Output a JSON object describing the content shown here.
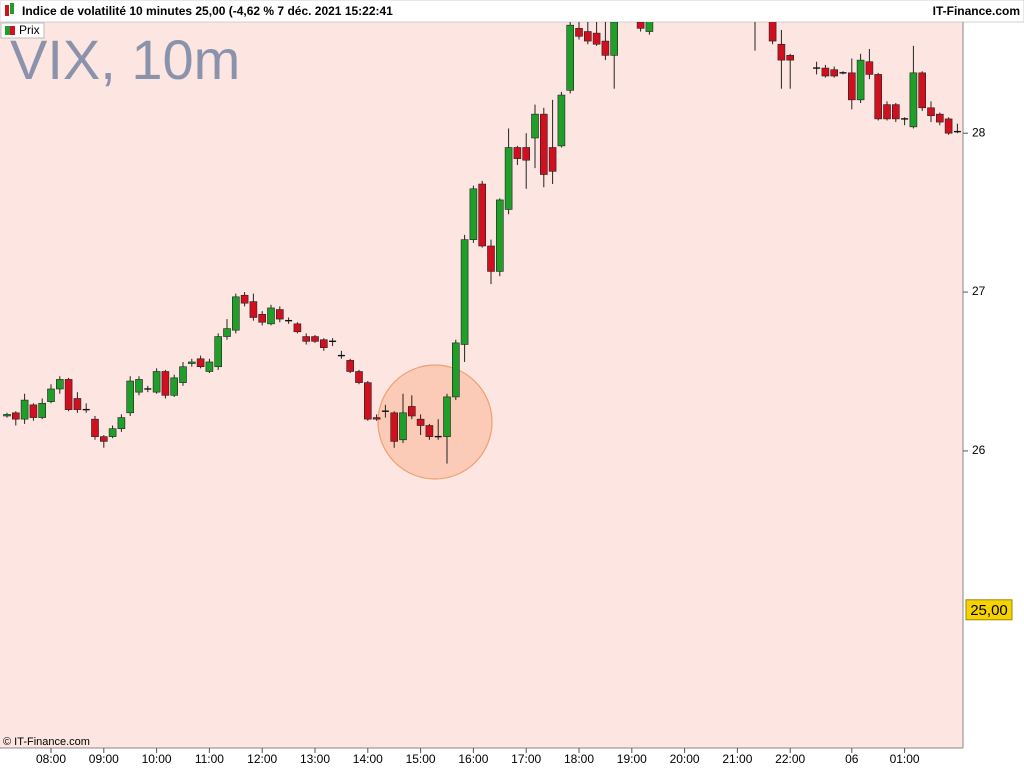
{
  "header": {
    "title": "Indice de volatilité 10 minutes 25,00 (-4,62 % 7 déc. 2021 15:22:41",
    "brand": "IT-Finance.com"
  },
  "footer": "© IT-Finance.com",
  "chart_data": {
    "type": "candlestick",
    "title": "VIX, 10m",
    "legend": "Prix",
    "up_color": "#1f9e2a",
    "down_color": "#d0101e",
    "categories": [
      null,
      null,
      null,
      null,
      null,
      "08:00",
      null,
      null,
      null,
      null,
      null,
      "09:00",
      null,
      null,
      null,
      null,
      null,
      "10:00",
      null,
      null,
      null,
      null,
      null,
      "11:00",
      null,
      null,
      null,
      null,
      null,
      "12:00",
      null,
      null,
      null,
      null,
      null,
      "13:00",
      null,
      null,
      null,
      null,
      null,
      "14:00",
      null,
      null,
      null,
      null,
      null,
      "15:00",
      null,
      null,
      null,
      null,
      null,
      "16:00",
      null,
      null,
      null,
      null,
      null,
      "17:00",
      null,
      null,
      null,
      null,
      null,
      "18:00",
      null,
      null,
      null,
      null,
      null,
      "19:00",
      null,
      null,
      null,
      null,
      null,
      "20:00",
      null,
      null,
      null,
      null,
      null,
      "21:00",
      null,
      null,
      null,
      null,
      null,
      "22:00",
      null,
      null,
      null,
      null,
      null,
      null,
      "06",
      null,
      null,
      null,
      null,
      null,
      "01:00",
      null,
      null,
      null,
      null,
      null,
      null
    ],
    "open": [
      26.22,
      26.24,
      26.2,
      26.29,
      26.21,
      26.31,
      26.39,
      26.45,
      26.33,
      26.26,
      26.2,
      26.09,
      26.09,
      26.14,
      26.24,
      26.37,
      26.39,
      26.37,
      26.5,
      26.35,
      26.43,
      26.55,
      26.58,
      26.5,
      26.53,
      26.72,
      26.76,
      26.98,
      26.94,
      26.86,
      26.8,
      26.89,
      26.82,
      26.8,
      26.72,
      26.72,
      26.7,
      26.69,
      26.6,
      26.57,
      26.5,
      26.43,
      26.21,
      26.25,
      26.24,
      26.07,
      26.28,
      26.2,
      26.16,
      26.09,
      26.09,
      26.34,
      26.67,
      27.33,
      27.68,
      27.29,
      27.13,
      27.52,
      27.91,
      27.91,
      27.97,
      28.12,
      27.91,
      27.92,
      28.27,
      28.66,
      28.64,
      28.63,
      28.58,
      28.49,
      null,
      null,
      28.7,
      28.64,
      null,
      null,
      null,
      null,
      null,
      null,
      null,
      null,
      null,
      null,
      null,
      28.8,
      null,
      28.75,
      28.56,
      28.49,
      null,
      null,
      28.41,
      28.41,
      28.4,
      28.38,
      28.38,
      28.21,
      28.45,
      28.37,
      28.18,
      28.18,
      28.09,
      28.04,
      28.38,
      28.16,
      28.12,
      28.09,
      28.01
    ],
    "high": [
      26.24,
      26.25,
      26.36,
      26.3,
      26.33,
      26.42,
      26.47,
      26.46,
      26.37,
      26.3,
      26.22,
      26.1,
      26.16,
      26.23,
      26.47,
      26.47,
      26.41,
      26.52,
      26.51,
      26.48,
      26.56,
      26.58,
      26.6,
      26.58,
      26.74,
      26.83,
      26.99,
      27.0,
      26.99,
      26.88,
      26.92,
      26.91,
      26.84,
      26.81,
      26.74,
      26.73,
      26.71,
      26.71,
      26.63,
      26.58,
      26.51,
      26.44,
      26.23,
      26.29,
      26.25,
      26.36,
      26.35,
      26.23,
      26.17,
      26.2,
      26.36,
      26.7,
      27.36,
      27.67,
      27.7,
      27.33,
      27.59,
      28.03,
      27.92,
      28.0,
      28.18,
      28.16,
      28.21,
      28.26,
      28.7,
      28.7,
      28.7,
      28.7,
      28.7,
      28.72,
      null,
      null,
      28.75,
      28.75,
      null,
      null,
      null,
      null,
      null,
      null,
      null,
      null,
      null,
      null,
      null,
      28.8,
      null,
      28.8,
      28.65,
      28.5,
      null,
      null,
      28.45,
      28.43,
      28.42,
      28.39,
      28.47,
      28.5,
      28.53,
      28.38,
      28.2,
      28.19,
      28.1,
      28.55,
      28.39,
      28.2,
      28.13,
      28.1,
      28.06
    ],
    "low": [
      26.21,
      26.16,
      26.17,
      26.19,
      26.2,
      26.3,
      26.36,
      26.25,
      26.24,
      26.24,
      26.07,
      26.02,
      26.08,
      26.12,
      26.22,
      26.35,
      26.37,
      26.36,
      26.33,
      26.34,
      26.41,
      26.53,
      26.52,
      26.49,
      26.51,
      26.7,
      26.74,
      26.91,
      26.82,
      26.79,
      26.79,
      26.81,
      26.8,
      26.74,
      26.67,
      26.68,
      26.63,
      26.66,
      26.58,
      26.49,
      26.42,
      26.19,
      26.19,
      26.21,
      26.02,
      26.05,
      26.2,
      26.1,
      26.07,
      26.07,
      25.92,
      26.32,
      26.56,
      27.31,
      27.28,
      27.05,
      27.1,
      27.49,
      27.8,
      27.65,
      27.78,
      27.66,
      27.68,
      27.91,
      28.25,
      28.59,
      28.56,
      28.55,
      28.46,
      28.28,
      null,
      null,
      28.64,
      28.62,
      null,
      null,
      null,
      null,
      null,
      null,
      null,
      null,
      null,
      null,
      null,
      28.52,
      null,
      28.56,
      28.28,
      28.28,
      null,
      null,
      28.37,
      28.35,
      28.35,
      28.37,
      28.15,
      28.19,
      28.34,
      28.08,
      28.08,
      28.07,
      28.05,
      28.03,
      28.14,
      28.07,
      28.05,
      27.99,
      28.0
    ],
    "close": [
      26.23,
      26.2,
      26.32,
      26.21,
      26.3,
      26.39,
      26.45,
      26.26,
      26.26,
      26.26,
      26.09,
      26.06,
      26.14,
      26.21,
      26.44,
      26.45,
      26.39,
      26.5,
      26.35,
      26.46,
      26.53,
      26.56,
      26.53,
      26.56,
      26.72,
      26.77,
      26.97,
      26.93,
      26.84,
      26.81,
      26.9,
      26.83,
      26.82,
      26.75,
      26.69,
      26.69,
      26.65,
      26.69,
      26.6,
      26.5,
      26.43,
      26.2,
      26.2,
      26.25,
      26.06,
      26.24,
      26.22,
      26.16,
      26.09,
      26.09,
      26.34,
      26.68,
      27.33,
      27.65,
      27.29,
      27.13,
      27.58,
      27.91,
      27.84,
      27.83,
      28.12,
      27.74,
      27.76,
      28.24,
      28.68,
      28.61,
      28.58,
      28.56,
      28.49,
      28.7,
      null,
      null,
      28.66,
      28.72,
      null,
      null,
      null,
      null,
      null,
      null,
      null,
      null,
      null,
      null,
      null,
      28.75,
      null,
      28.58,
      28.46,
      28.46,
      null,
      null,
      28.41,
      28.36,
      28.36,
      28.38,
      28.21,
      28.46,
      28.37,
      28.09,
      28.09,
      28.09,
      28.09,
      28.38,
      28.16,
      28.11,
      28.07,
      28.0,
      28.01
    ],
    "ylim": [
      24.13,
      28.7
    ],
    "yticks": [
      26,
      27,
      28
    ],
    "last_value": {
      "value": 25,
      "label": "25,00"
    }
  }
}
